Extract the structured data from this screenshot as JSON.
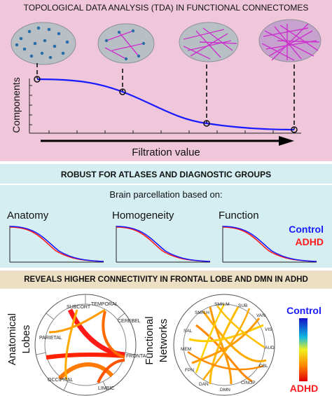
{
  "section1": {
    "title": "TOPOLOGICAL DATA ANALYSIS (TDA) IN FUNCTIONAL CONNECTOMES",
    "ylabel": "Components",
    "xlabel": "Filtration value"
  },
  "section2": {
    "title": "ROBUST FOR ATLASES AND DIAGNOSTIC GROUPS",
    "subtitle": "Brain parcellation based on:",
    "plots": [
      "Anatomy",
      "Homogeneity",
      "Function"
    ],
    "legend": [
      {
        "label": "Control",
        "color": "#1a1aff"
      },
      {
        "label": "ADHD",
        "color": "#ff1a1a"
      }
    ]
  },
  "section3": {
    "title": "REVEALS HIGHER CONNECTIVITY IN FRONTAL LOBE AND DMN IN ADHD",
    "left_label_1": "Anatomical",
    "left_label_2": "Lobes",
    "right_label_1": "Functional",
    "right_label_2": "Networks",
    "lobes": [
      "SUBCORT",
      "TEMPORAL",
      "CEREBEL",
      "FRONTAL",
      "LIMBIC",
      "OCCIPITAL",
      "PARIETAL"
    ],
    "networks": [
      "SMN.H",
      "SMN.M",
      "SUB",
      "VAN",
      "VIS",
      "AUD",
      "CBL",
      "CINOP",
      "DMN",
      "DAN",
      "FPN",
      "MEM",
      "SAL"
    ],
    "colorbar_top": "Control",
    "colorbar_bottom": "ADHD"
  },
  "colors": {
    "panel1_bg": "#efc6da",
    "panel2_bg": "#d4eef1",
    "panel3_header_bg": "#ecdfc3",
    "curve": "#1a1aff",
    "edge_magenta": "#cc33cc"
  }
}
